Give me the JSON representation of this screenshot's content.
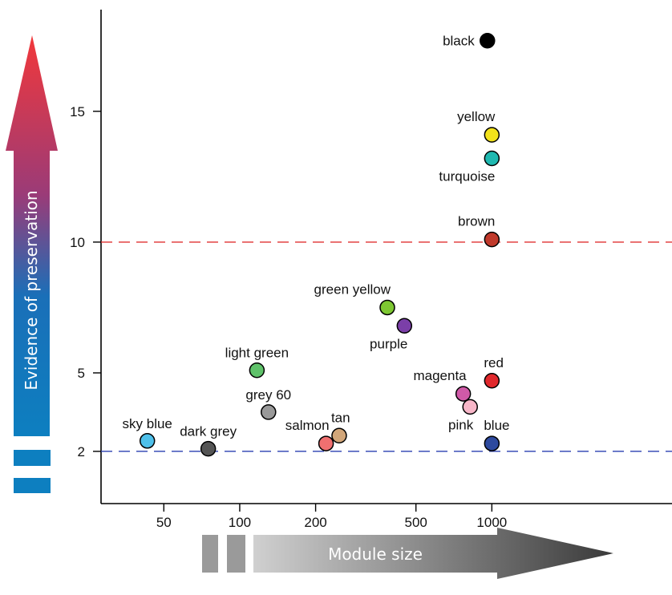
{
  "chart_data": {
    "type": "scatter",
    "title": "",
    "xlabel": "Module size",
    "ylabel": "Evidence of preservation",
    "x_scale": "log",
    "xlim": [
      30,
      1000
    ],
    "ylim": [
      0,
      18.5
    ],
    "x_ticks": [
      50,
      100,
      200,
      500,
      1000
    ],
    "y_ticks": [
      2,
      5,
      10,
      15
    ],
    "grid": false,
    "thresholds": [
      {
        "y": 10,
        "color": "#e03030"
      },
      {
        "y": 2,
        "color": "#2a3fb0"
      }
    ],
    "points": [
      {
        "name": "black",
        "x": 960,
        "y": 17.7,
        "color": "#000000",
        "label_side": "left"
      },
      {
        "name": "yellow",
        "x": 1000,
        "y": 14.1,
        "color": "#f2e21b",
        "label_side": "top-left"
      },
      {
        "name": "turquoise",
        "x": 1000,
        "y": 13.2,
        "color": "#1fb8b0",
        "label_side": "bottom-left"
      },
      {
        "name": "brown",
        "x": 1000,
        "y": 10.1,
        "color": "#c0392b",
        "label_side": "top-left"
      },
      {
        "name": "green yellow",
        "x": 385,
        "y": 7.5,
        "color": "#7ec832",
        "label_side": "top-left"
      },
      {
        "name": "purple",
        "x": 450,
        "y": 6.8,
        "color": "#7b3fa8",
        "label_side": "bottom-left"
      },
      {
        "name": "red",
        "x": 1000,
        "y": 4.7,
        "color": "#e0282c",
        "label_side": "top-right"
      },
      {
        "name": "light green",
        "x": 117,
        "y": 5.1,
        "color": "#5fc26a",
        "label_side": "top"
      },
      {
        "name": "magenta",
        "x": 770,
        "y": 4.2,
        "color": "#d05aa8",
        "label_side": "top-left"
      },
      {
        "name": "pink",
        "x": 820,
        "y": 3.7,
        "color": "#f7b6c8",
        "label_side": "bottom-left"
      },
      {
        "name": "blue",
        "x": 1000,
        "y": 2.3,
        "color": "#2e4a9e",
        "label_side": "top-right"
      },
      {
        "name": "grey 60",
        "x": 130,
        "y": 3.5,
        "color": "#999999",
        "label_side": "top"
      },
      {
        "name": "sky blue",
        "x": 43,
        "y": 2.4,
        "color": "#4ec0ea",
        "label_side": "top"
      },
      {
        "name": "dark grey",
        "x": 75,
        "y": 2.1,
        "color": "#555555",
        "label_side": "top"
      },
      {
        "name": "salmon",
        "x": 220,
        "y": 2.3,
        "color": "#f07070",
        "label_side": "top-left"
      },
      {
        "name": "tan",
        "x": 248,
        "y": 2.6,
        "color": "#d2a679",
        "label_side": "top-right"
      }
    ]
  }
}
